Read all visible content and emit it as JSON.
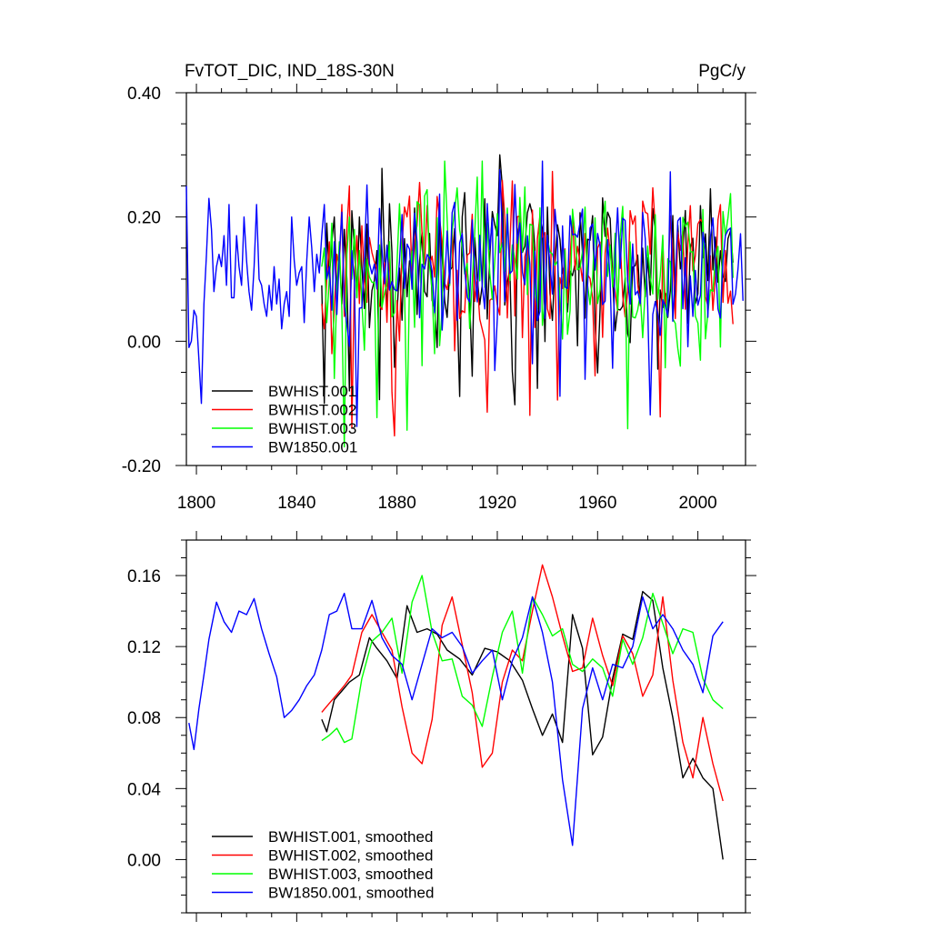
{
  "chart_data": [
    {
      "type": "line",
      "title": "FvTOT_DIC, IND_18S-30N",
      "units": "PgC/y",
      "xlabel": "",
      "ylabel": "",
      "xlim": [
        1796,
        2019
      ],
      "ylim": [
        -0.2,
        0.4
      ],
      "xticks": [
        1800,
        1840,
        1880,
        1920,
        1960,
        2000
      ],
      "yticks": [
        -0.2,
        0.0,
        0.2,
        0.4
      ],
      "ytick_labels": [
        "-0.20",
        "0.00",
        "0.20",
        "0.40"
      ],
      "legend_position": "bottom-left",
      "series": [
        {
          "name": "BWHIST.001",
          "color": "#000000",
          "x_start": 1850,
          "seed": 11,
          "amp": 0.095,
          "clamp": [
            -0.19,
            0.3
          ],
          "values": [
            0.09,
            -0.1,
            0.19,
            0.1,
            0.16,
            0.2,
            0.08,
            0.14,
            0.06,
            0.18,
            0.1,
            -0.08,
            0.21,
            0.15,
            0.07,
            0.2,
            0.12
          ]
        },
        {
          "name": "BWHIST.002",
          "color": "#ff0000",
          "x_start": 1850,
          "seed": 23,
          "amp": 0.095,
          "clamp": [
            -0.18,
            0.32
          ],
          "values": [
            0.06,
            0.02,
            0.1,
            0.16,
            -0.02,
            0.05,
            0.14,
            0.12,
            0.22,
            0.04,
            0.18,
            0.25,
            -0.14,
            0.1,
            0.17
          ]
        },
        {
          "name": "BWHIST.003",
          "color": "#00ff00",
          "x_start": 1850,
          "seed": 37,
          "amp": 0.095,
          "clamp": [
            -0.17,
            0.29
          ],
          "values": [
            0.12,
            0.15,
            0.03,
            0.1,
            0.19,
            -0.06,
            0.08,
            0.16,
            0.05,
            -0.17,
            0.14,
            0.2,
            0.1,
            0.18,
            0.07
          ]
        },
        {
          "name": "BW1850.001",
          "color": "#0000ff",
          "x_start": 1796,
          "seed": 53,
          "amp": 0.09,
          "clamp": [
            -0.15,
            0.29
          ],
          "values": [
            0.25,
            -0.01,
            0.0,
            0.05,
            0.04,
            -0.03,
            -0.1,
            0.06,
            0.14,
            0.23,
            0.18,
            0.08,
            0.12,
            0.14,
            0.12,
            0.17,
            0.09,
            0.22,
            0.07,
            0.07,
            0.17,
            0.12,
            0.09,
            0.2,
            0.13,
            0.08,
            0.05,
            0.12,
            0.22,
            0.1,
            0.09,
            0.06,
            0.04,
            0.09,
            0.05,
            0.12,
            0.06,
            0.1,
            0.02,
            0.06,
            0.08,
            0.04,
            0.2,
            0.13,
            0.09,
            0.11,
            0.12,
            0.03,
            0.13,
            0.2,
            0.15,
            0.08,
            0.14,
            0.11,
            0.17,
            0.22,
            0.1,
            0.12,
            0.05,
            0.16
          ]
        }
      ]
    },
    {
      "type": "line",
      "title": "",
      "xlabel": "",
      "ylabel": "",
      "xlim": [
        1796,
        2019
      ],
      "ylim": [
        -0.03,
        0.18
      ],
      "xticks": [
        1800,
        1840,
        1880,
        1920,
        1960,
        2000
      ],
      "yticks": [
        0.0,
        0.04,
        0.08,
        0.12,
        0.16
      ],
      "ytick_labels": [
        "0.00",
        "0.04",
        "0.08",
        "0.12",
        "0.16"
      ],
      "show_xtick_labels": false,
      "legend_position": "bottom-left",
      "series": [
        {
          "name": "BWHIST.001, smoothed",
          "color": "#000000",
          "x": [
            1850,
            1852,
            1855,
            1858,
            1861,
            1865,
            1869,
            1872,
            1876,
            1880,
            1884,
            1888,
            1892,
            1896,
            1900,
            1905,
            1910,
            1915,
            1920,
            1925,
            1930,
            1934,
            1938,
            1942,
            1946,
            1950,
            1954,
            1958,
            1962,
            1966,
            1970,
            1974,
            1978,
            1982,
            1986,
            1990,
            1994,
            1998,
            2002,
            2006,
            2010
          ],
          "values": [
            0.079,
            0.072,
            0.09,
            0.095,
            0.1,
            0.104,
            0.125,
            0.119,
            0.112,
            0.102,
            0.143,
            0.128,
            0.13,
            0.127,
            0.118,
            0.113,
            0.104,
            0.119,
            0.117,
            0.112,
            0.101,
            0.085,
            0.07,
            0.082,
            0.066,
            0.138,
            0.119,
            0.059,
            0.069,
            0.102,
            0.127,
            0.124,
            0.151,
            0.146,
            0.108,
            0.08,
            0.046,
            0.057,
            0.046,
            0.04,
            0.0
          ]
        },
        {
          "name": "BWHIST.002, smoothed",
          "color": "#ff0000",
          "x": [
            1850,
            1853,
            1856,
            1859,
            1862,
            1866,
            1870,
            1874,
            1878,
            1882,
            1886,
            1890,
            1894,
            1898,
            1902,
            1906,
            1910,
            1914,
            1918,
            1922,
            1926,
            1930,
            1934,
            1938,
            1942,
            1946,
            1950,
            1954,
            1958,
            1962,
            1966,
            1970,
            1974,
            1978,
            1982,
            1986,
            1990,
            1994,
            1998,
            2002,
            2006,
            2010
          ],
          "values": [
            0.083,
            0.088,
            0.093,
            0.098,
            0.104,
            0.128,
            0.138,
            0.128,
            0.118,
            0.086,
            0.06,
            0.054,
            0.079,
            0.132,
            0.148,
            0.121,
            0.094,
            0.052,
            0.06,
            0.1,
            0.118,
            0.112,
            0.14,
            0.166,
            0.148,
            0.126,
            0.106,
            0.108,
            0.136,
            0.115,
            0.098,
            0.126,
            0.116,
            0.092,
            0.104,
            0.148,
            0.101,
            0.066,
            0.046,
            0.08,
            0.054,
            0.033
          ]
        },
        {
          "name": "BWHIST.003, smoothed",
          "color": "#00ff00",
          "x": [
            1850,
            1853,
            1856,
            1859,
            1862,
            1866,
            1870,
            1874,
            1878,
            1882,
            1886,
            1890,
            1894,
            1898,
            1902,
            1906,
            1910,
            1914,
            1918,
            1922,
            1926,
            1930,
            1934,
            1938,
            1942,
            1946,
            1950,
            1954,
            1958,
            1962,
            1966,
            1970,
            1974,
            1978,
            1982,
            1986,
            1990,
            1994,
            1998,
            2002,
            2006,
            2010
          ],
          "values": [
            0.067,
            0.07,
            0.074,
            0.066,
            0.068,
            0.102,
            0.123,
            0.128,
            0.136,
            0.105,
            0.145,
            0.16,
            0.128,
            0.112,
            0.113,
            0.092,
            0.087,
            0.075,
            0.103,
            0.128,
            0.14,
            0.105,
            0.148,
            0.138,
            0.126,
            0.13,
            0.11,
            0.106,
            0.113,
            0.108,
            0.092,
            0.124,
            0.11,
            0.125,
            0.15,
            0.133,
            0.116,
            0.13,
            0.128,
            0.102,
            0.09,
            0.085
          ]
        },
        {
          "name": "BW1850.001, smoothed",
          "color": "#0000ff",
          "x": [
            1797,
            1799,
            1801,
            1803,
            1805,
            1808,
            1811,
            1814,
            1817,
            1820,
            1823,
            1826,
            1829,
            1832,
            1835,
            1838,
            1841,
            1844,
            1847,
            1850,
            1853,
            1856,
            1859,
            1862,
            1866,
            1870,
            1874,
            1878,
            1882,
            1886,
            1890,
            1894,
            1898,
            1902,
            1906,
            1910,
            1914,
            1918,
            1922,
            1926,
            1930,
            1934,
            1938,
            1942,
            1946,
            1950,
            1954,
            1958,
            1962,
            1966,
            1970,
            1974,
            1978,
            1982,
            1986,
            1990,
            1994,
            1998,
            2002,
            2006,
            2010
          ],
          "values": [
            0.077,
            0.062,
            0.085,
            0.104,
            0.124,
            0.145,
            0.134,
            0.128,
            0.14,
            0.138,
            0.147,
            0.13,
            0.116,
            0.103,
            0.08,
            0.084,
            0.09,
            0.098,
            0.104,
            0.118,
            0.138,
            0.14,
            0.15,
            0.13,
            0.13,
            0.146,
            0.125,
            0.115,
            0.11,
            0.09,
            0.11,
            0.13,
            0.125,
            0.128,
            0.12,
            0.105,
            0.112,
            0.118,
            0.09,
            0.112,
            0.125,
            0.148,
            0.128,
            0.1,
            0.045,
            0.008,
            0.085,
            0.108,
            0.09,
            0.11,
            0.108,
            0.12,
            0.148,
            0.13,
            0.138,
            0.13,
            0.118,
            0.11,
            0.094,
            0.126,
            0.134
          ]
        }
      ]
    }
  ]
}
